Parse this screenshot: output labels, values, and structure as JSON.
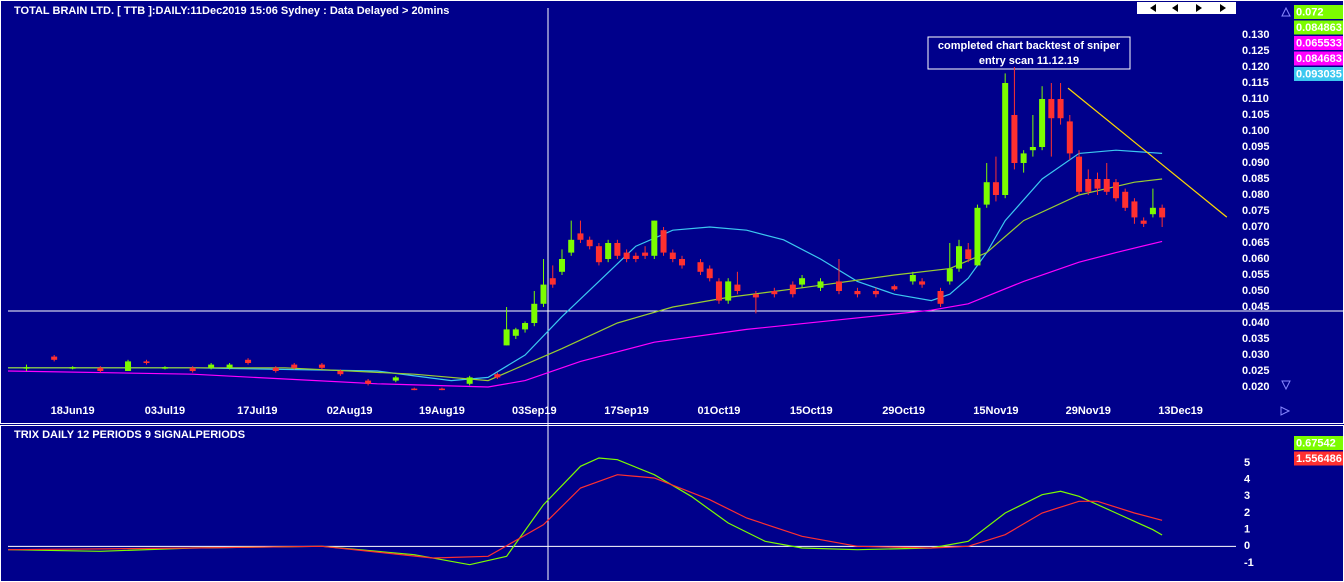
{
  "chart_data": [
    {
      "type": "candlestick",
      "title": "TOTAL BRAIN LTD. [ TTB ]:DAILY:11Dec2019 15:06 Sydney : Data Delayed > 20mins",
      "annotation": [
        "completed chart backtest of sniper",
        "entry scan 11.12.19"
      ],
      "xlim": [
        0,
        133
      ],
      "xticks": [
        {
          "value": 7,
          "label": "18Jun19"
        },
        {
          "value": 17,
          "label": "03Jul19"
        },
        {
          "value": 27,
          "label": "17Jul19"
        },
        {
          "value": 37,
          "label": "02Aug19"
        },
        {
          "value": 47,
          "label": "19Aug19"
        },
        {
          "value": 57,
          "label": "03Sep19"
        },
        {
          "value": 67,
          "label": "17Sep19"
        },
        {
          "value": 77,
          "label": "01Oct19"
        },
        {
          "value": 87,
          "label": "15Oct19"
        },
        {
          "value": 97,
          "label": "29Oct19"
        },
        {
          "value": 107,
          "label": "15Nov19"
        },
        {
          "value": 117,
          "label": "29Nov19"
        },
        {
          "value": 127,
          "label": "13Dec19"
        }
      ],
      "ylim": [
        0.00906,
        0.13844
      ],
      "yticks": [
        {
          "value": 0.02,
          "label": "0.020"
        },
        {
          "value": 0.025,
          "label": "0.025"
        },
        {
          "value": 0.03,
          "label": "0.030"
        },
        {
          "value": 0.035,
          "label": "0.035"
        },
        {
          "value": 0.04,
          "label": "0.040"
        },
        {
          "value": 0.045,
          "label": "0.045"
        },
        {
          "value": 0.05,
          "label": "0.050"
        },
        {
          "value": 0.055,
          "label": "0.055"
        },
        {
          "value": 0.06,
          "label": "0.060"
        },
        {
          "value": 0.065,
          "label": "0.065"
        },
        {
          "value": 0.07,
          "label": "0.070"
        },
        {
          "value": 0.075,
          "label": "0.075"
        },
        {
          "value": 0.08,
          "label": "0.080"
        },
        {
          "value": 0.085,
          "label": "0.085"
        },
        {
          "value": 0.09,
          "label": "0.090"
        },
        {
          "value": 0.095,
          "label": "0.095"
        },
        {
          "value": 0.1,
          "label": "0.100"
        },
        {
          "value": 0.105,
          "label": "0.105"
        },
        {
          "value": 0.11,
          "label": "0.110"
        },
        {
          "value": 0.115,
          "label": "0.115"
        },
        {
          "value": 0.12,
          "label": "0.120"
        },
        {
          "value": 0.125,
          "label": "0.125"
        },
        {
          "value": 0.13,
          "label": "0.130"
        }
      ],
      "up_color": "#7cfc00",
      "down_color": "#ff3030",
      "candles": [
        {
          "x": 2,
          "open": 0.026,
          "high": 0.027,
          "low": 0.025,
          "close": 0.0262
        },
        {
          "x": 5,
          "open": 0.0295,
          "high": 0.03,
          "low": 0.028,
          "close": 0.0285
        },
        {
          "x": 7,
          "open": 0.026,
          "high": 0.0265,
          "low": 0.0255,
          "close": 0.0262
        },
        {
          "x": 10,
          "open": 0.026,
          "high": 0.0265,
          "low": 0.0245,
          "close": 0.025
        },
        {
          "x": 13,
          "open": 0.025,
          "high": 0.0285,
          "low": 0.025,
          "close": 0.028
        },
        {
          "x": 15,
          "open": 0.028,
          "high": 0.0285,
          "low": 0.027,
          "close": 0.0275
        },
        {
          "x": 17,
          "open": 0.026,
          "high": 0.0265,
          "low": 0.0255,
          "close": 0.0262
        },
        {
          "x": 20,
          "open": 0.026,
          "high": 0.0265,
          "low": 0.0245,
          "close": 0.025
        },
        {
          "x": 22,
          "open": 0.026,
          "high": 0.0275,
          "low": 0.0255,
          "close": 0.027
        },
        {
          "x": 24,
          "open": 0.026,
          "high": 0.0275,
          "low": 0.0255,
          "close": 0.027
        },
        {
          "x": 26,
          "open": 0.0285,
          "high": 0.029,
          "low": 0.027,
          "close": 0.0275
        },
        {
          "x": 29,
          "open": 0.026,
          "high": 0.0265,
          "low": 0.0245,
          "close": 0.025
        },
        {
          "x": 31,
          "open": 0.027,
          "high": 0.0275,
          "low": 0.0255,
          "close": 0.026
        },
        {
          "x": 34,
          "open": 0.027,
          "high": 0.0275,
          "low": 0.0255,
          "close": 0.026
        },
        {
          "x": 36,
          "open": 0.025,
          "high": 0.0255,
          "low": 0.0235,
          "close": 0.024
        },
        {
          "x": 39,
          "open": 0.022,
          "high": 0.0225,
          "low": 0.0205,
          "close": 0.021
        },
        {
          "x": 42,
          "open": 0.022,
          "high": 0.0235,
          "low": 0.0215,
          "close": 0.023
        },
        {
          "x": 44,
          "open": 0.0195,
          "high": 0.0198,
          "low": 0.019,
          "close": 0.0193
        },
        {
          "x": 47,
          "open": 0.0195,
          "high": 0.0198,
          "low": 0.019,
          "close": 0.0193
        },
        {
          "x": 50,
          "open": 0.021,
          "high": 0.0235,
          "low": 0.0205,
          "close": 0.023
        },
        {
          "x": 53,
          "open": 0.024,
          "high": 0.0245,
          "low": 0.0225,
          "close": 0.023
        },
        {
          "x": 54,
          "open": 0.033,
          "high": 0.045,
          "low": 0.033,
          "close": 0.038
        },
        {
          "x": 55,
          "open": 0.036,
          "high": 0.0385,
          "low": 0.035,
          "close": 0.038
        },
        {
          "x": 56,
          "open": 0.038,
          "high": 0.0405,
          "low": 0.037,
          "close": 0.04
        },
        {
          "x": 57,
          "open": 0.04,
          "high": 0.05,
          "low": 0.039,
          "close": 0.046
        },
        {
          "x": 58,
          "open": 0.046,
          "high": 0.06,
          "low": 0.045,
          "close": 0.052
        },
        {
          "x": 59,
          "open": 0.054,
          "high": 0.058,
          "low": 0.051,
          "close": 0.052
        },
        {
          "x": 60,
          "open": 0.056,
          "high": 0.063,
          "low": 0.055,
          "close": 0.06
        },
        {
          "x": 61,
          "open": 0.062,
          "high": 0.072,
          "low": 0.061,
          "close": 0.066
        },
        {
          "x": 62,
          "open": 0.068,
          "high": 0.072,
          "low": 0.065,
          "close": 0.066
        },
        {
          "x": 63,
          "open": 0.066,
          "high": 0.067,
          "low": 0.063,
          "close": 0.064
        },
        {
          "x": 64,
          "open": 0.064,
          "high": 0.065,
          "low": 0.058,
          "close": 0.059
        },
        {
          "x": 65,
          "open": 0.06,
          "high": 0.066,
          "low": 0.059,
          "close": 0.065
        },
        {
          "x": 66,
          "open": 0.065,
          "high": 0.066,
          "low": 0.06,
          "close": 0.061
        },
        {
          "x": 67,
          "open": 0.062,
          "high": 0.063,
          "low": 0.059,
          "close": 0.06
        },
        {
          "x": 68,
          "open": 0.061,
          "high": 0.062,
          "low": 0.059,
          "close": 0.06
        },
        {
          "x": 69,
          "open": 0.062,
          "high": 0.064,
          "low": 0.06,
          "close": 0.061
        },
        {
          "x": 70,
          "open": 0.061,
          "high": 0.072,
          "low": 0.06,
          "close": 0.072
        },
        {
          "x": 71,
          "open": 0.069,
          "high": 0.07,
          "low": 0.061,
          "close": 0.062
        },
        {
          "x": 72,
          "open": 0.062,
          "high": 0.063,
          "low": 0.059,
          "close": 0.06
        },
        {
          "x": 73,
          "open": 0.06,
          "high": 0.061,
          "low": 0.057,
          "close": 0.058
        },
        {
          "x": 75,
          "open": 0.059,
          "high": 0.06,
          "low": 0.055,
          "close": 0.056
        },
        {
          "x": 76,
          "open": 0.057,
          "high": 0.058,
          "low": 0.053,
          "close": 0.054
        },
        {
          "x": 77,
          "open": 0.053,
          "high": 0.054,
          "low": 0.046,
          "close": 0.047
        },
        {
          "x": 78,
          "open": 0.047,
          "high": 0.054,
          "low": 0.046,
          "close": 0.053
        },
        {
          "x": 79,
          "open": 0.052,
          "high": 0.056,
          "low": 0.049,
          "close": 0.05
        },
        {
          "x": 81,
          "open": 0.049,
          "high": 0.05,
          "low": 0.043,
          "close": 0.048
        },
        {
          "x": 83,
          "open": 0.05,
          "high": 0.051,
          "low": 0.048,
          "close": 0.049
        },
        {
          "x": 85,
          "open": 0.052,
          "high": 0.053,
          "low": 0.048,
          "close": 0.049
        },
        {
          "x": 86,
          "open": 0.052,
          "high": 0.055,
          "low": 0.051,
          "close": 0.054
        },
        {
          "x": 88,
          "open": 0.051,
          "high": 0.054,
          "low": 0.05,
          "close": 0.053
        },
        {
          "x": 90,
          "open": 0.053,
          "high": 0.06,
          "low": 0.049,
          "close": 0.05
        },
        {
          "x": 92,
          "open": 0.05,
          "high": 0.051,
          "low": 0.048,
          "close": 0.049
        },
        {
          "x": 94,
          "open": 0.05,
          "high": 0.051,
          "low": 0.048,
          "close": 0.049
        },
        {
          "x": 96,
          "open": 0.0515,
          "high": 0.052,
          "low": 0.05,
          "close": 0.0505
        },
        {
          "x": 98,
          "open": 0.053,
          "high": 0.056,
          "low": 0.052,
          "close": 0.055
        },
        {
          "x": 99,
          "open": 0.053,
          "high": 0.054,
          "low": 0.051,
          "close": 0.052
        },
        {
          "x": 101,
          "open": 0.05,
          "high": 0.051,
          "low": 0.045,
          "close": 0.046
        },
        {
          "x": 102,
          "open": 0.053,
          "high": 0.065,
          "low": 0.052,
          "close": 0.057
        },
        {
          "x": 103,
          "open": 0.057,
          "high": 0.066,
          "low": 0.056,
          "close": 0.064
        },
        {
          "x": 104,
          "open": 0.063,
          "high": 0.065,
          "low": 0.059,
          "close": 0.06
        },
        {
          "x": 105,
          "open": 0.058,
          "high": 0.077,
          "low": 0.058,
          "close": 0.076
        },
        {
          "x": 106,
          "open": 0.077,
          "high": 0.09,
          "low": 0.076,
          "close": 0.084
        },
        {
          "x": 107,
          "open": 0.084,
          "high": 0.092,
          "low": 0.078,
          "close": 0.08
        },
        {
          "x": 108,
          "open": 0.08,
          "high": 0.118,
          "low": 0.079,
          "close": 0.115
        },
        {
          "x": 109,
          "open": 0.105,
          "high": 0.12,
          "low": 0.088,
          "close": 0.09
        },
        {
          "x": 110,
          "open": 0.09,
          "high": 0.094,
          "low": 0.087,
          "close": 0.093
        },
        {
          "x": 111,
          "open": 0.094,
          "high": 0.105,
          "low": 0.092,
          "close": 0.095
        },
        {
          "x": 112,
          "open": 0.095,
          "high": 0.114,
          "low": 0.094,
          "close": 0.11
        },
        {
          "x": 113,
          "open": 0.11,
          "high": 0.115,
          "low": 0.092,
          "close": 0.104
        },
        {
          "x": 114,
          "open": 0.11,
          "high": 0.115,
          "low": 0.102,
          "close": 0.104
        },
        {
          "x": 115,
          "open": 0.103,
          "high": 0.105,
          "low": 0.091,
          "close": 0.093
        },
        {
          "x": 116,
          "open": 0.092,
          "high": 0.094,
          "low": 0.08,
          "close": 0.081
        },
        {
          "x": 117,
          "open": 0.085,
          "high": 0.088,
          "low": 0.08,
          "close": 0.081
        },
        {
          "x": 118,
          "open": 0.085,
          "high": 0.087,
          "low": 0.08,
          "close": 0.082
        },
        {
          "x": 119,
          "open": 0.085,
          "high": 0.09,
          "low": 0.08,
          "close": 0.081
        },
        {
          "x": 120,
          "open": 0.084,
          "high": 0.085,
          "low": 0.078,
          "close": 0.079
        },
        {
          "x": 121,
          "open": 0.081,
          "high": 0.082,
          "low": 0.075,
          "close": 0.076
        },
        {
          "x": 122,
          "open": 0.078,
          "high": 0.079,
          "low": 0.071,
          "close": 0.073
        },
        {
          "x": 123,
          "open": 0.072,
          "high": 0.073,
          "low": 0.07,
          "close": 0.071
        },
        {
          "x": 124,
          "open": 0.074,
          "high": 0.082,
          "low": 0.073,
          "close": 0.076
        },
        {
          "x": 125,
          "open": 0.076,
          "high": 0.077,
          "low": 0.07,
          "close": 0.073
        }
      ],
      "series": [
        {
          "color": "#3cc8f0",
          "x": [
            0,
            20,
            40,
            48,
            52,
            56,
            60,
            64,
            68,
            72,
            76,
            80,
            84,
            88,
            92,
            96,
            100,
            102,
            104,
            106,
            108,
            112,
            116,
            120,
            125
          ],
          "values": [
            0.026,
            0.026,
            0.025,
            0.022,
            0.023,
            0.03,
            0.042,
            0.053,
            0.064,
            0.069,
            0.07,
            0.069,
            0.066,
            0.06,
            0.053,
            0.049,
            0.047,
            0.049,
            0.054,
            0.062,
            0.072,
            0.085,
            0.093,
            0.094,
            0.093
          ]
        },
        {
          "color": "#9acd32",
          "x": [
            0,
            30,
            44,
            52,
            56,
            60,
            66,
            72,
            78,
            86,
            96,
            102,
            106,
            110,
            116,
            122,
            125
          ],
          "values": [
            0.026,
            0.026,
            0.024,
            0.022,
            0.027,
            0.032,
            0.04,
            0.045,
            0.048,
            0.051,
            0.055,
            0.057,
            0.062,
            0.072,
            0.08,
            0.084,
            0.085
          ]
        },
        {
          "color": "#ff00ff",
          "x": [
            0,
            20,
            40,
            52,
            56,
            62,
            70,
            80,
            90,
            100,
            104,
            110,
            116,
            120,
            125
          ],
          "values": [
            0.025,
            0.024,
            0.021,
            0.02,
            0.022,
            0.028,
            0.034,
            0.038,
            0.041,
            0.044,
            0.046,
            0.053,
            0.059,
            0.062,
            0.0655
          ]
        },
        {
          "color": "#ffd700",
          "x": [
            114.8,
            132
          ],
          "values": [
            0.1134,
            0.0731
          ]
        }
      ],
      "marker_values": [
        0.072,
        0.084863,
        0.065533,
        0.084683,
        0.093035
      ],
      "marker_colors": [
        "#7cfc00",
        "#7cfc00",
        "#ff00ff",
        "#ff00ff",
        "#3cc8f0"
      ]
    },
    {
      "type": "line",
      "title": "TRIX DAILY 12 PERIODS 9 SIGNALPERIODS",
      "xlim": [
        0,
        133
      ],
      "ylim": [
        -2.02,
        7.1
      ],
      "yticks": [
        -1,
        0,
        1,
        2,
        3,
        4,
        5
      ],
      "tick_color": "#7cfc00",
      "series": [
        {
          "color": "#7cfc00",
          "x": [
            0,
            10,
            20,
            34,
            44,
            50,
            54,
            58,
            62,
            64,
            66,
            70,
            74,
            78,
            82,
            86,
            92,
            100,
            104,
            108,
            112,
            114,
            116,
            120,
            124,
            125
          ],
          "values": [
            -0.2,
            -0.3,
            -0.1,
            0.0,
            -0.5,
            -1.1,
            -0.6,
            2.5,
            4.8,
            5.3,
            5.2,
            4.3,
            3.0,
            1.4,
            0.3,
            -0.1,
            -0.2,
            -0.1,
            0.3,
            2.0,
            3.1,
            3.3,
            3.0,
            2.0,
            1.0,
            0.68
          ]
        },
        {
          "color": "#ff3030",
          "x": [
            0,
            20,
            34,
            46,
            52,
            58,
            62,
            66,
            70,
            76,
            80,
            86,
            92,
            100,
            104,
            108,
            112,
            116,
            118,
            122,
            125
          ],
          "values": [
            -0.2,
            -0.1,
            0.0,
            -0.7,
            -0.6,
            1.3,
            3.5,
            4.3,
            4.1,
            2.8,
            1.7,
            0.6,
            0.0,
            -0.1,
            0.0,
            0.7,
            2.0,
            2.7,
            2.7,
            2.0,
            1.56
          ]
        }
      ],
      "marker_values": [
        0.67542,
        1.556486
      ],
      "marker_colors": [
        "#7cfc00",
        "#ff3030"
      ]
    }
  ]
}
